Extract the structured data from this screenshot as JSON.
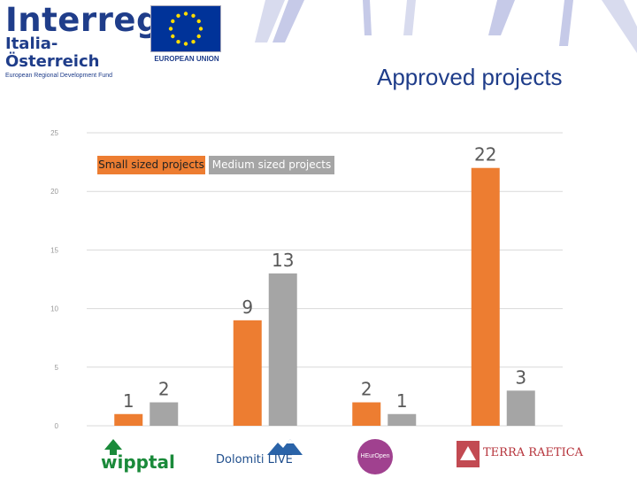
{
  "header": {
    "interreg_name": "Interreg",
    "interreg_region": "Italia-Österreich",
    "interreg_fund": "European Regional Development Fund",
    "eu_label": "EUROPEAN UNION",
    "title": "Approved projects"
  },
  "partners": {
    "wipptal": "wipptal",
    "dolomiti": "Dolomiti LIVE",
    "heur": "HEurOpen",
    "terra": "TERRA RAETICA"
  },
  "colors": {
    "small": "#ed7d31",
    "medium": "#a5a5a5",
    "title": "#1f3d8a",
    "grid": "#d9d9d9"
  },
  "chart_data": {
    "type": "bar",
    "categories": [
      "wipptal",
      "Dolomiti LIVE",
      "HEurOpen",
      "TERRA RAETICA"
    ],
    "series": [
      {
        "name": "Small sized projects",
        "values": [
          1,
          9,
          2,
          22
        ]
      },
      {
        "name": "Medium sized projects",
        "values": [
          2,
          13,
          1,
          3
        ]
      }
    ],
    "yticks": [
      "0",
      "5",
      "10",
      "15",
      "20",
      "25"
    ],
    "ylim": [
      0,
      25
    ],
    "grid": true,
    "legend": "top-left",
    "data_labels": true
  }
}
